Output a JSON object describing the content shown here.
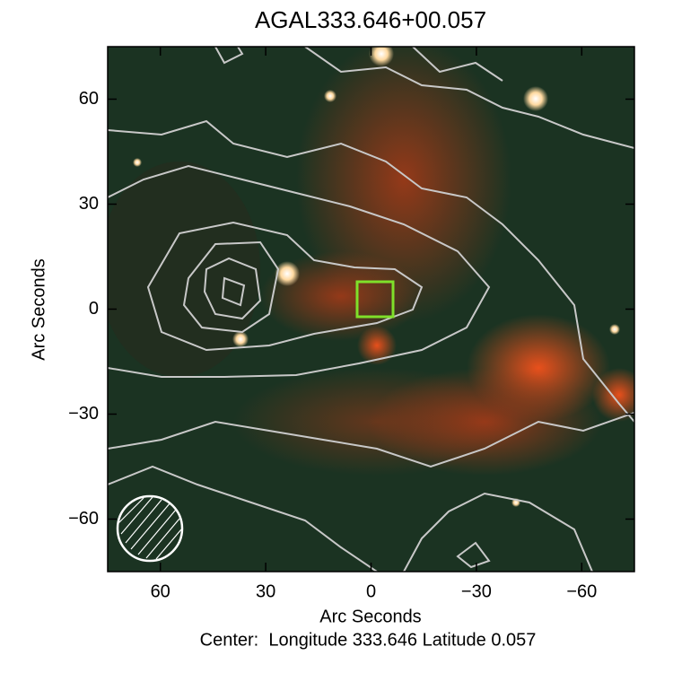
{
  "chart_data": {
    "type": "image",
    "title": "AGAL333.646+00.057",
    "xlabel": "Arc Seconds",
    "ylabel": "Arc Seconds",
    "caption": "Center:  Longitude 333.646 Latitude 0.057",
    "xlim": [
      75,
      -75
    ],
    "ylim": [
      -75,
      75
    ],
    "xticks": [
      60,
      30,
      0,
      {
        "value": -30,
        "label": "−30"
      },
      {
        "value": -60,
        "label": "−60"
      }
    ],
    "yticks": [
      {
        "value": -60,
        "label": "−60"
      },
      {
        "value": -30,
        "label": "−30"
      },
      0,
      30,
      60
    ]
  }
}
